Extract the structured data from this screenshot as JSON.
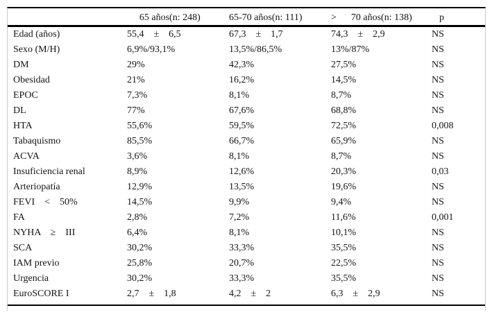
{
  "table": {
    "header": {
      "col_label": "",
      "col_group1": "<      65 años(n: 248)",
      "col_group2": "65-70 años(n: 111)",
      "col_group3": ">      70 años(n: 138)",
      "col_p": "p"
    },
    "rows": [
      {
        "label": "Edad (años)",
        "g1": "55,4    ±    6,5",
        "g2": "67,3    ±    1,7",
        "g3": "74,3    ±    2,9",
        "p": "NS"
      },
      {
        "label": "Sexo (M/H)",
        "g1": "6,9%/93,1%",
        "g2": "13,5%/86,5%",
        "g3": "13%/87%",
        "p": "NS"
      },
      {
        "label": "DM",
        "g1": "29%",
        "g2": "42,3%",
        "g3": "27,5%",
        "p": "NS"
      },
      {
        "label": "Obesidad",
        "g1": "21%",
        "g2": "16,2%",
        "g3": "14,5%",
        "p": "NS"
      },
      {
        "label": "EPOC",
        "g1": "7,3%",
        "g2": "8,1%",
        "g3": "8,7%",
        "p": "NS"
      },
      {
        "label": "DL",
        "g1": "77%",
        "g2": "67,6%",
        "g3": "68,8%",
        "p": "NS"
      },
      {
        "label": "HTA",
        "g1": "55,6%",
        "g2": "59,5%",
        "g3": "72,5%",
        "p": "0,008"
      },
      {
        "label": "Tabaquismo",
        "g1": "85,5%",
        "g2": "66,7%",
        "g3": "65,9%",
        "p": "NS"
      },
      {
        "label": "ACVA",
        "g1": "3,6%",
        "g2": "8,1%",
        "g3": "8,7%",
        "p": "NS"
      },
      {
        "label": "Insuficiencia renal",
        "g1": "8,9%",
        "g2": "12,6%",
        "g3": "20,3%",
        "p": "0,03"
      },
      {
        "label": "Arteriopatía",
        "g1": "12,9%",
        "g2": "13,5%",
        "g3": "19,6%",
        "p": "NS"
      },
      {
        "label": "FEVI    <    50%",
        "g1": "14,5%",
        "g2": "9,9%",
        "g3": "9,4%",
        "p": "NS"
      },
      {
        "label": "FA",
        "g1": "2,8%",
        "g2": "7,2%",
        "g3": "11,6%",
        "p": "0,001"
      },
      {
        "label": "NYHA    ≥    III",
        "g1": "6,4%",
        "g2": "8,1%",
        "g3": "10,1%",
        "p": "NS"
      },
      {
        "label": "SCA",
        "g1": "30,2%",
        "g2": "33,3%",
        "g3": "35,5%",
        "p": "NS"
      },
      {
        "label": "IAM previo",
        "g1": "25,8%",
        "g2": "20,7%",
        "g3": "22,5%",
        "p": "NS"
      },
      {
        "label": "Urgencia",
        "g1": "30,2%",
        "g2": "33,3%",
        "g3": "35,5%",
        "p": "NS"
      },
      {
        "label": "EuroSCORE I",
        "g1": "2,7    ±    1,8",
        "g2": "4,2    ±    2",
        "g3": "6,3    ±    2,9",
        "p": "NS"
      }
    ]
  }
}
